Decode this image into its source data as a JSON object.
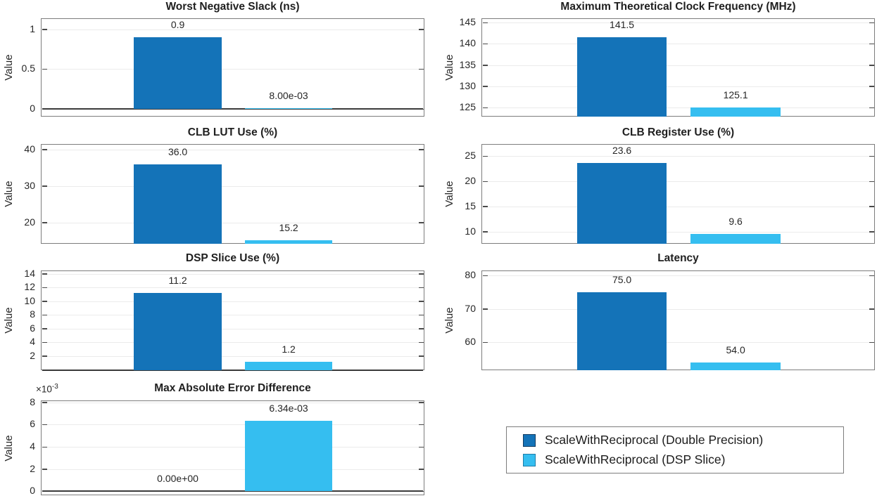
{
  "figure": {
    "background": "#ffffff"
  },
  "palette": {
    "axis_text": "#262626",
    "box_border": "#7d7d7d",
    "grid": "#ebebeb",
    "baseline": "#3a3a3a",
    "series": [
      {
        "name": "ScaleWithReciprocal (Double Precision)",
        "fill": "#1473b8",
        "edge": "#123a5f"
      },
      {
        "name": "ScaleWithReciprocal (DSP Slice)",
        "fill": "#35bef0",
        "edge": "#1e7da8"
      }
    ]
  },
  "legend": {
    "position": "bottom-right",
    "entries": [
      {
        "label": "ScaleWithReciprocal (Double Precision)",
        "swatch": "#1473b8",
        "swatch_border": "#123a5f"
      },
      {
        "label": "ScaleWithReciprocal (DSP Slice)",
        "swatch": "#35bef0",
        "swatch_border": "#1e7da8"
      }
    ]
  },
  "chart_data": [
    {
      "type": "bar",
      "title": "Worst Negative Slack (ns)",
      "ylabel": "Value",
      "categories": [
        "ScaleWithReciprocal (Double Precision)",
        "ScaleWithReciprocal (DSP Slice)"
      ],
      "values": [
        0.9,
        0.008
      ],
      "value_labels": [
        "0.9",
        "8.00e-03"
      ],
      "ylim": [
        -0.097,
        1.14
      ],
      "yticks": [
        0,
        0.5,
        1
      ],
      "ytick_labels": [
        "0",
        "0.5",
        "1"
      ],
      "grid": true,
      "baseline_at_zero": true,
      "row": 0,
      "col": 0
    },
    {
      "type": "bar",
      "title": "Maximum Theoretical Clock Frequency (MHz)",
      "ylabel": "Value",
      "categories": [
        "ScaleWithReciprocal (Double Precision)",
        "ScaleWithReciprocal (DSP Slice)"
      ],
      "values": [
        141.5,
        125.1
      ],
      "value_labels": [
        "141.5",
        "125.1"
      ],
      "ylim": [
        122.9,
        146.0
      ],
      "yticks": [
        125,
        130,
        135,
        140,
        145
      ],
      "ytick_labels": [
        "125",
        "130",
        "135",
        "140",
        "145"
      ],
      "grid": true,
      "baseline_at_zero": false,
      "row": 0,
      "col": 1
    },
    {
      "type": "bar",
      "title": "CLB LUT Use (%)",
      "ylabel": "Value",
      "categories": [
        "ScaleWithReciprocal (Double Precision)",
        "ScaleWithReciprocal (DSP Slice)"
      ],
      "values": [
        36.0,
        15.2
      ],
      "value_labels": [
        "36.0",
        "15.2"
      ],
      "ylim": [
        14.2,
        41.5
      ],
      "yticks": [
        20,
        30,
        40
      ],
      "ytick_labels": [
        "20",
        "30",
        "40"
      ],
      "grid": true,
      "baseline_at_zero": false,
      "row": 1,
      "col": 0
    },
    {
      "type": "bar",
      "title": "CLB Register Use (%)",
      "ylabel": "Value",
      "categories": [
        "ScaleWithReciprocal (Double Precision)",
        "ScaleWithReciprocal (DSP Slice)"
      ],
      "values": [
        23.6,
        9.6
      ],
      "value_labels": [
        "23.6",
        "9.6"
      ],
      "ylim": [
        7.6,
        27.4
      ],
      "yticks": [
        10,
        15,
        20,
        25
      ],
      "ytick_labels": [
        "10",
        "15",
        "20",
        "25"
      ],
      "grid": true,
      "baseline_at_zero": false,
      "row": 1,
      "col": 1
    },
    {
      "type": "bar",
      "title": "DSP Slice Use (%)",
      "ylabel": "Value",
      "categories": [
        "ScaleWithReciprocal (Double Precision)",
        "ScaleWithReciprocal (DSP Slice)"
      ],
      "values": [
        11.2,
        1.2
      ],
      "value_labels": [
        "11.2",
        "1.2"
      ],
      "ylim": [
        -0.05,
        14.5
      ],
      "yticks": [
        2,
        4,
        6,
        8,
        10,
        12,
        14
      ],
      "ytick_labels": [
        "2",
        "4",
        "6",
        "8",
        "10",
        "12",
        "14"
      ],
      "grid": true,
      "baseline_at_zero": true,
      "row": 2,
      "col": 0
    },
    {
      "type": "bar",
      "title": "Latency",
      "ylabel": "Value",
      "categories": [
        "ScaleWithReciprocal (Double Precision)",
        "ScaleWithReciprocal (DSP Slice)"
      ],
      "values": [
        75.0,
        54.0
      ],
      "value_labels": [
        "75.0",
        "54.0"
      ],
      "ylim": [
        51.6,
        81.5
      ],
      "yticks": [
        60,
        70,
        80
      ],
      "ytick_labels": [
        "60",
        "70",
        "80"
      ],
      "grid": true,
      "baseline_at_zero": false,
      "row": 2,
      "col": 1
    },
    {
      "type": "bar",
      "title": "Max Absolute Error Difference",
      "ylabel": "Value",
      "categories": [
        "ScaleWithReciprocal (Double Precision)",
        "ScaleWithReciprocal (DSP Slice)"
      ],
      "values": [
        0,
        6.34
      ],
      "value_labels": [
        "0.00e+00",
        "6.34e-03"
      ],
      "ylim": [
        -0.38,
        8.19
      ],
      "yticks": [
        0,
        2,
        4,
        6,
        8
      ],
      "ytick_labels": [
        "0",
        "2",
        "4",
        "6",
        "8"
      ],
      "offset": {
        "base": "×10",
        "exponent": "-3"
      },
      "grid": true,
      "baseline_at_zero": true,
      "row": 3,
      "col": 0
    }
  ]
}
